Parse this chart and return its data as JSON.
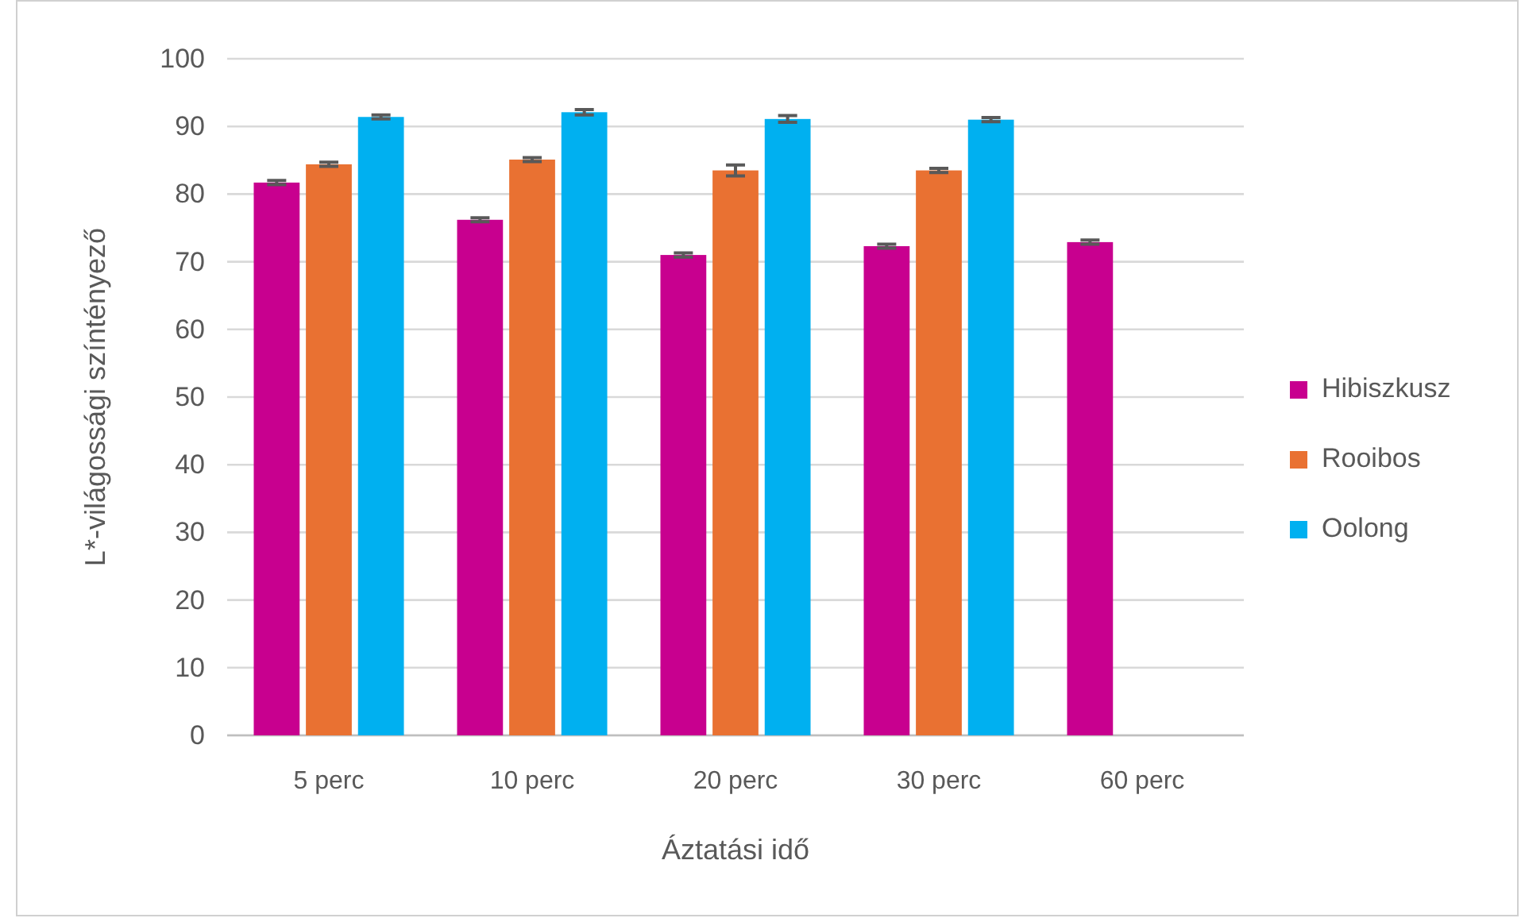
{
  "chart_data": {
    "type": "bar",
    "xlabel": "Áztatási idő",
    "ylabel": "L*-világossági színtényező",
    "categories": [
      "5 perc",
      "10 perc",
      "20 perc",
      "30 perc",
      "60 perc"
    ],
    "series": [
      {
        "name": "Hibiszkusz",
        "color": "#c8008f",
        "values": [
          81.7,
          76.2,
          71.0,
          72.3,
          72.9
        ],
        "errors": [
          0.3,
          0.3,
          0.3,
          0.3,
          0.3
        ]
      },
      {
        "name": "Rooibos",
        "color": "#e97132",
        "values": [
          84.4,
          85.1,
          83.5,
          83.5,
          null
        ],
        "errors": [
          0.3,
          0.3,
          0.8,
          0.3,
          null
        ]
      },
      {
        "name": "Oolong",
        "color": "#00b0f0",
        "values": [
          91.4,
          92.1,
          91.1,
          91.0,
          null
        ],
        "errors": [
          0.3,
          0.4,
          0.5,
          0.3,
          null
        ]
      }
    ],
    "ylim": [
      0,
      100
    ],
    "yticks": [
      0,
      10,
      20,
      30,
      40,
      50,
      60,
      70,
      80,
      90,
      100
    ],
    "grid": "y",
    "legend": "right"
  }
}
